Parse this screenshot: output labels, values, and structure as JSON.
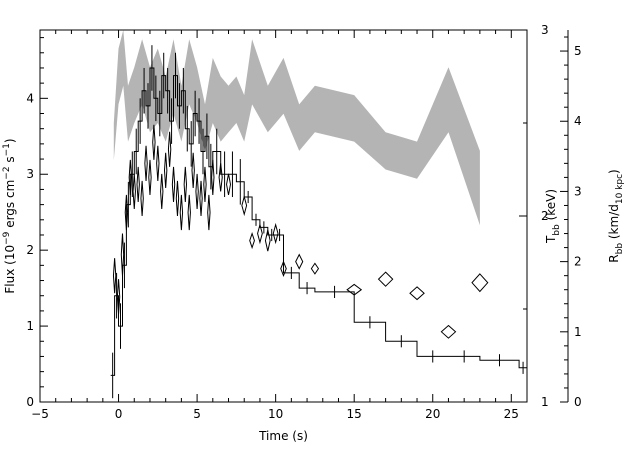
{
  "chart_data": {
    "type": "line",
    "title": "",
    "xlabel": "Time (s)",
    "ylabel_left_parts": {
      "prefix": "Flux (10",
      "exp1": "−9",
      "mid": " ergs cm",
      "exp2": "−2",
      "mid2": " s",
      "exp3": "−1",
      "suffix": ")"
    },
    "ylabel_right1_parts": {
      "base": "T",
      "sub": "bb",
      "suffix": " (keV)"
    },
    "ylabel_right2_parts": {
      "base": "R",
      "sub": "bb",
      "mid": " (km/d",
      "sub2": "10 kpc",
      "suffix": ")"
    },
    "xlim": [
      -5,
      26
    ],
    "ylim_left": [
      0,
      4.9
    ],
    "ylim_T": [
      1,
      3
    ],
    "ylim_R": [
      0,
      5.3
    ],
    "x_ticks": [
      -5,
      0,
      5,
      10,
      15,
      20,
      25
    ],
    "y_left_ticks": [
      0,
      1,
      2,
      3,
      4
    ],
    "y_T_ticks": [
      1,
      2,
      3
    ],
    "y_R_ticks": [
      0,
      1,
      2,
      3,
      4,
      5
    ],
    "series": [
      {
        "style": "histogram-with-errorbars",
        "axis": "left",
        "points": [
          [
            -0.5,
            0.35
          ],
          [
            -0.25,
            1.4
          ],
          [
            0.0,
            1.0
          ],
          [
            0.25,
            1.8
          ],
          [
            0.5,
            2.6
          ],
          [
            0.75,
            3.0
          ],
          [
            1.0,
            3.3
          ],
          [
            1.25,
            3.7
          ],
          [
            1.5,
            4.1
          ],
          [
            1.75,
            3.9
          ],
          [
            2.0,
            4.4
          ],
          [
            2.25,
            4.0
          ],
          [
            2.5,
            3.8
          ],
          [
            2.75,
            4.3
          ],
          [
            3.0,
            4.1
          ],
          [
            3.25,
            3.7
          ],
          [
            3.5,
            4.3
          ],
          [
            3.75,
            3.9
          ],
          [
            4.0,
            4.1
          ],
          [
            4.25,
            3.6
          ],
          [
            4.5,
            3.4
          ],
          [
            4.75,
            3.8
          ],
          [
            5.0,
            3.7
          ],
          [
            5.25,
            3.3
          ],
          [
            5.5,
            3.5
          ],
          [
            5.75,
            3.1
          ],
          [
            6.0,
            3.3
          ],
          [
            6.5,
            3.0
          ],
          [
            7.0,
            3.0
          ],
          [
            7.5,
            2.9
          ],
          [
            8.0,
            2.7
          ],
          [
            8.5,
            2.4
          ],
          [
            9.0,
            2.3
          ],
          [
            9.5,
            2.2
          ],
          [
            10.0,
            2.2
          ],
          [
            10.5,
            1.7
          ],
          [
            11.5,
            1.5
          ],
          [
            12.5,
            1.45
          ],
          [
            15.0,
            1.05
          ],
          [
            17.0,
            0.8
          ],
          [
            19.0,
            0.6
          ],
          [
            21.0,
            0.6
          ],
          [
            23.0,
            0.55
          ],
          [
            25.5,
            0.45
          ]
        ]
      },
      {
        "style": "grey-band",
        "axis": "T",
        "points": [
          [
            -0.3,
            2.3,
            2.5
          ],
          [
            0.0,
            2.6,
            2.9
          ],
          [
            0.3,
            2.7,
            3.0
          ],
          [
            0.6,
            2.4,
            2.7
          ],
          [
            1.0,
            2.5,
            2.8
          ],
          [
            1.5,
            2.6,
            2.95
          ],
          [
            2.0,
            2.45,
            2.8
          ],
          [
            2.5,
            2.5,
            2.9
          ],
          [
            3.0,
            2.4,
            2.75
          ],
          [
            3.5,
            2.55,
            2.95
          ],
          [
            4.0,
            2.4,
            2.7
          ],
          [
            4.5,
            2.6,
            2.95
          ],
          [
            5.0,
            2.5,
            2.8
          ],
          [
            5.5,
            2.35,
            2.6
          ],
          [
            6.0,
            2.5,
            2.85
          ],
          [
            6.5,
            2.4,
            2.75
          ],
          [
            7.0,
            2.45,
            2.7
          ],
          [
            7.5,
            2.5,
            2.75
          ],
          [
            8.0,
            2.4,
            2.65
          ],
          [
            8.5,
            2.6,
            2.95
          ],
          [
            9.5,
            2.45,
            2.7
          ],
          [
            10.5,
            2.55,
            2.85
          ],
          [
            11.5,
            2.35,
            2.6
          ],
          [
            12.5,
            2.45,
            2.7
          ],
          [
            15.0,
            2.4,
            2.65
          ],
          [
            17.0,
            2.25,
            2.45
          ],
          [
            19.0,
            2.2,
            2.4
          ],
          [
            21.0,
            2.45,
            2.8
          ],
          [
            23.0,
            1.95,
            2.35
          ]
        ]
      },
      {
        "style": "diamonds",
        "axis": "R",
        "points": [
          [
            -0.25,
            1.8,
            0.15,
            0.5
          ],
          [
            0.0,
            1.5,
            0.15,
            0.5
          ],
          [
            0.25,
            2.1,
            0.15,
            0.6
          ],
          [
            0.5,
            2.7,
            0.15,
            0.5
          ],
          [
            0.75,
            3.2,
            0.15,
            0.5
          ],
          [
            1.0,
            3.0,
            0.15,
            0.5
          ],
          [
            1.25,
            3.1,
            0.15,
            0.5
          ],
          [
            1.5,
            2.9,
            0.15,
            0.5
          ],
          [
            1.75,
            3.4,
            0.15,
            0.5
          ],
          [
            2.0,
            3.2,
            0.15,
            0.5
          ],
          [
            2.25,
            3.7,
            0.15,
            0.5
          ],
          [
            2.5,
            3.4,
            0.15,
            0.5
          ],
          [
            2.75,
            3.0,
            0.15,
            0.5
          ],
          [
            3.0,
            3.3,
            0.15,
            0.5
          ],
          [
            3.25,
            3.6,
            0.15,
            0.5
          ],
          [
            3.5,
            3.1,
            0.15,
            0.5
          ],
          [
            3.75,
            2.9,
            0.15,
            0.5
          ],
          [
            4.0,
            2.7,
            0.15,
            0.5
          ],
          [
            4.25,
            3.1,
            0.15,
            0.5
          ],
          [
            4.5,
            2.7,
            0.15,
            0.5
          ],
          [
            4.75,
            3.3,
            0.15,
            0.5
          ],
          [
            5.0,
            3.0,
            0.15,
            0.5
          ],
          [
            5.25,
            2.9,
            0.15,
            0.5
          ],
          [
            5.5,
            3.1,
            0.15,
            0.5
          ],
          [
            5.75,
            2.7,
            0.15,
            0.5
          ],
          [
            6.0,
            3.2,
            0.15,
            0.5
          ],
          [
            6.5,
            3.2,
            0.2,
            0.4
          ],
          [
            7.0,
            3.1,
            0.25,
            0.3
          ],
          [
            8.0,
            2.8,
            0.3,
            0.25
          ],
          [
            8.5,
            2.3,
            0.3,
            0.2
          ],
          [
            9.0,
            2.4,
            0.3,
            0.25
          ],
          [
            9.5,
            2.3,
            0.3,
            0.3
          ],
          [
            10.0,
            2.4,
            0.3,
            0.25
          ],
          [
            10.5,
            1.9,
            0.35,
            0.2
          ],
          [
            11.5,
            2.0,
            0.45,
            0.2
          ],
          [
            12.5,
            1.9,
            0.45,
            0.15
          ],
          [
            15.0,
            1.6,
            0.9,
            0.15
          ],
          [
            17.0,
            1.75,
            0.9,
            0.2
          ],
          [
            19.0,
            1.55,
            0.9,
            0.18
          ],
          [
            21.0,
            1.0,
            0.9,
            0.18
          ],
          [
            23.0,
            1.7,
            1.0,
            0.25
          ]
        ]
      }
    ]
  }
}
